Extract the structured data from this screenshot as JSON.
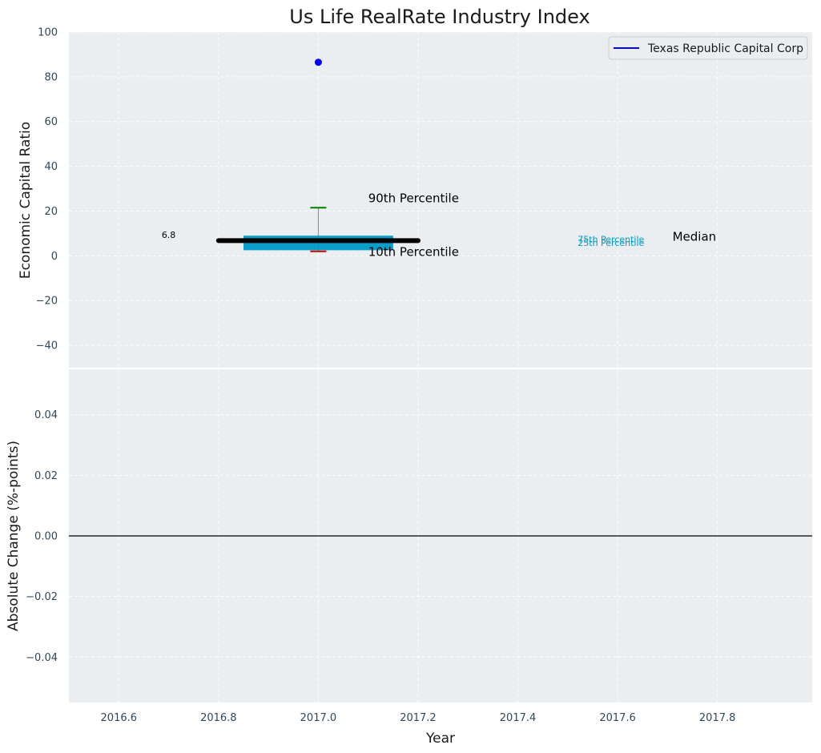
{
  "chart_data": [
    {
      "type": "box",
      "title": "Us Life RealRate Industry Index",
      "ylabel": "Economic Capital Ratio",
      "xlim": [
        2016.5,
        2017.99
      ],
      "ylim": [
        -50,
        100
      ],
      "yticks": [
        "100",
        "80",
        "60",
        "40",
        "20",
        "0",
        "−20",
        "−40"
      ],
      "ytick_values": [
        100,
        80,
        60,
        40,
        20,
        0,
        -20,
        -40
      ],
      "grid": true,
      "legend": {
        "placement": "top-right",
        "entries": [
          {
            "name": "Texas Republic Capital Corp",
            "color": "#0000ff"
          }
        ]
      },
      "box": {
        "x": 2017.0,
        "x_from": 2016.85,
        "x_to": 2017.15,
        "p10": 2,
        "p25": 2.5,
        "p75": 9,
        "p90": 21.5,
        "median": 6.8,
        "median_x_from": 2016.8,
        "median_x_to": 2017.2,
        "color": "#0099c6"
      },
      "company_point": {
        "x": 2017.0,
        "y": 86.5,
        "color": "#0000ff"
      },
      "annotations": {
        "median_value": {
          "text": "6.8",
          "x": 2016.7,
          "y": 8
        },
        "p90": {
          "text": "90th Percentile",
          "x": 2017.1,
          "y": 24
        },
        "p10": {
          "text": "10th Percentile",
          "x": 2017.1,
          "y": 0
        },
        "p75": {
          "text": "75th Percentile",
          "x": 2017.52,
          "y": 6
        },
        "p25": {
          "text": "25th Percentile",
          "x": 2017.52,
          "y": 4.5
        },
        "median": {
          "text": "Median",
          "x": 2017.71,
          "y": 6.8
        }
      }
    },
    {
      "type": "line",
      "xlabel": "Year",
      "ylabel": "Absolute Change (%-points)",
      "xlim": [
        2016.5,
        2017.99
      ],
      "ylim": [
        -0.055,
        0.055
      ],
      "xticks": [
        "2016.6",
        "2016.8",
        "2017.0",
        "2017.2",
        "2017.4",
        "2017.6",
        "2017.8"
      ],
      "xtick_values": [
        2016.6,
        2016.8,
        2017.0,
        2017.2,
        2017.4,
        2017.6,
        2017.8
      ],
      "yticks": [
        "0.04",
        "0.02",
        "0.00",
        "−0.02",
        "−0.04"
      ],
      "ytick_values": [
        0.04,
        0.02,
        0.0,
        -0.02,
        -0.04
      ],
      "grid": true,
      "reference_line_y": 0.0
    }
  ],
  "colors": {
    "plot_background": "#eaeef0",
    "box": "#0099c6",
    "median_line": "#000000",
    "whisker": "#888888",
    "p90_cap": "#008000",
    "p10_cap": "#cc0000",
    "point": "#0000ff"
  }
}
